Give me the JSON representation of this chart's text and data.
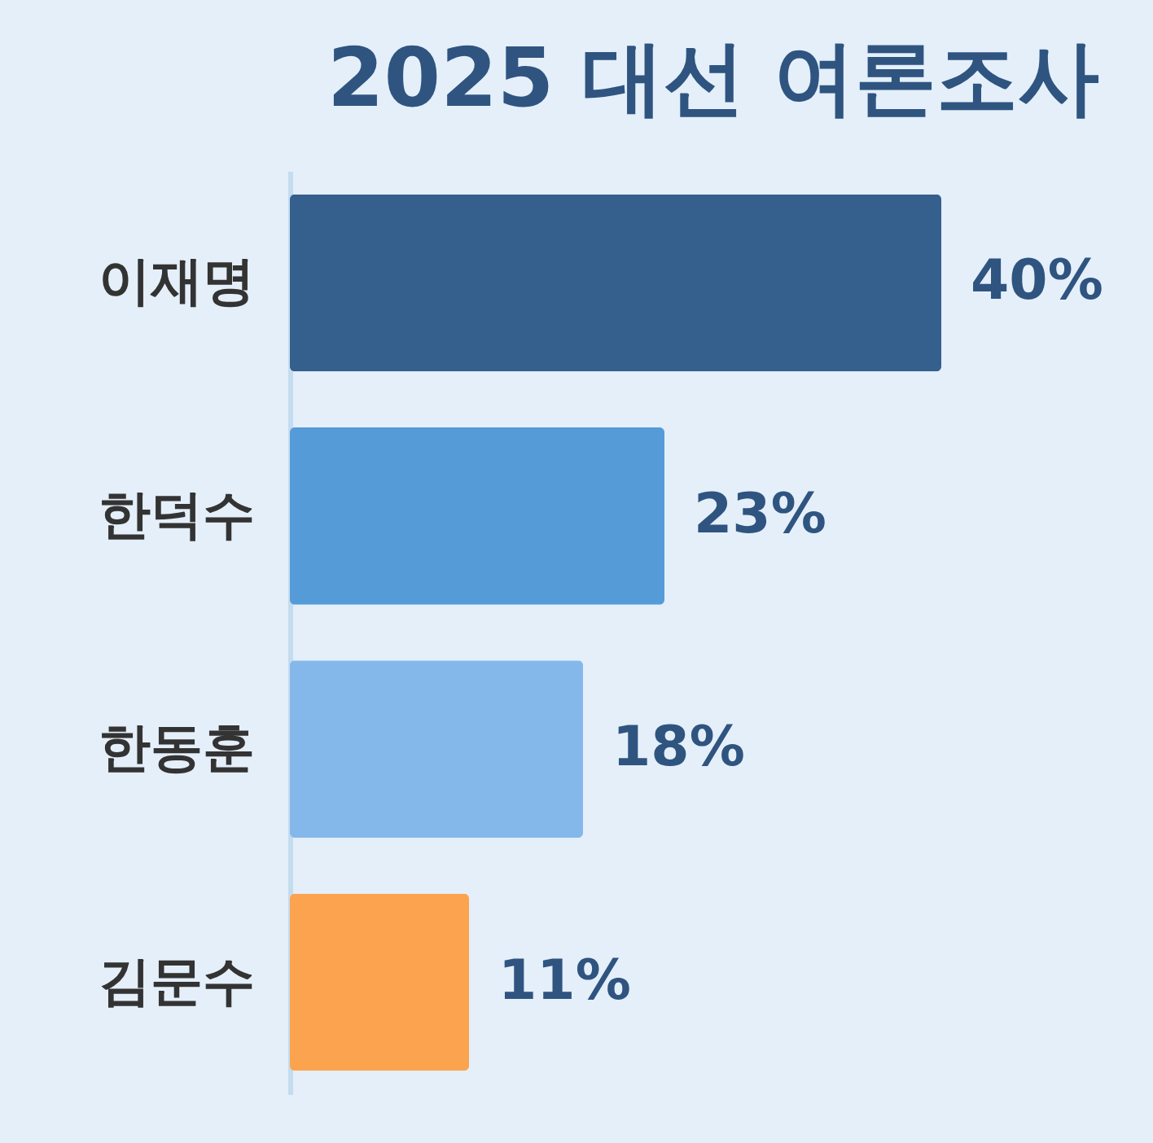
{
  "chart_data": {
    "type": "bar",
    "title": "2025 대선 여론조사",
    "orientation": "horizontal",
    "categories": [
      "이재명",
      "한덕수",
      "한동훈",
      "김문수"
    ],
    "values": [
      40,
      23,
      18,
      11
    ],
    "colors": [
      "#355f8c",
      "#559bd8",
      "#85b8ea",
      "#fca34f"
    ],
    "value_labels": [
      "40%",
      "23%",
      "18%",
      "11%"
    ]
  }
}
